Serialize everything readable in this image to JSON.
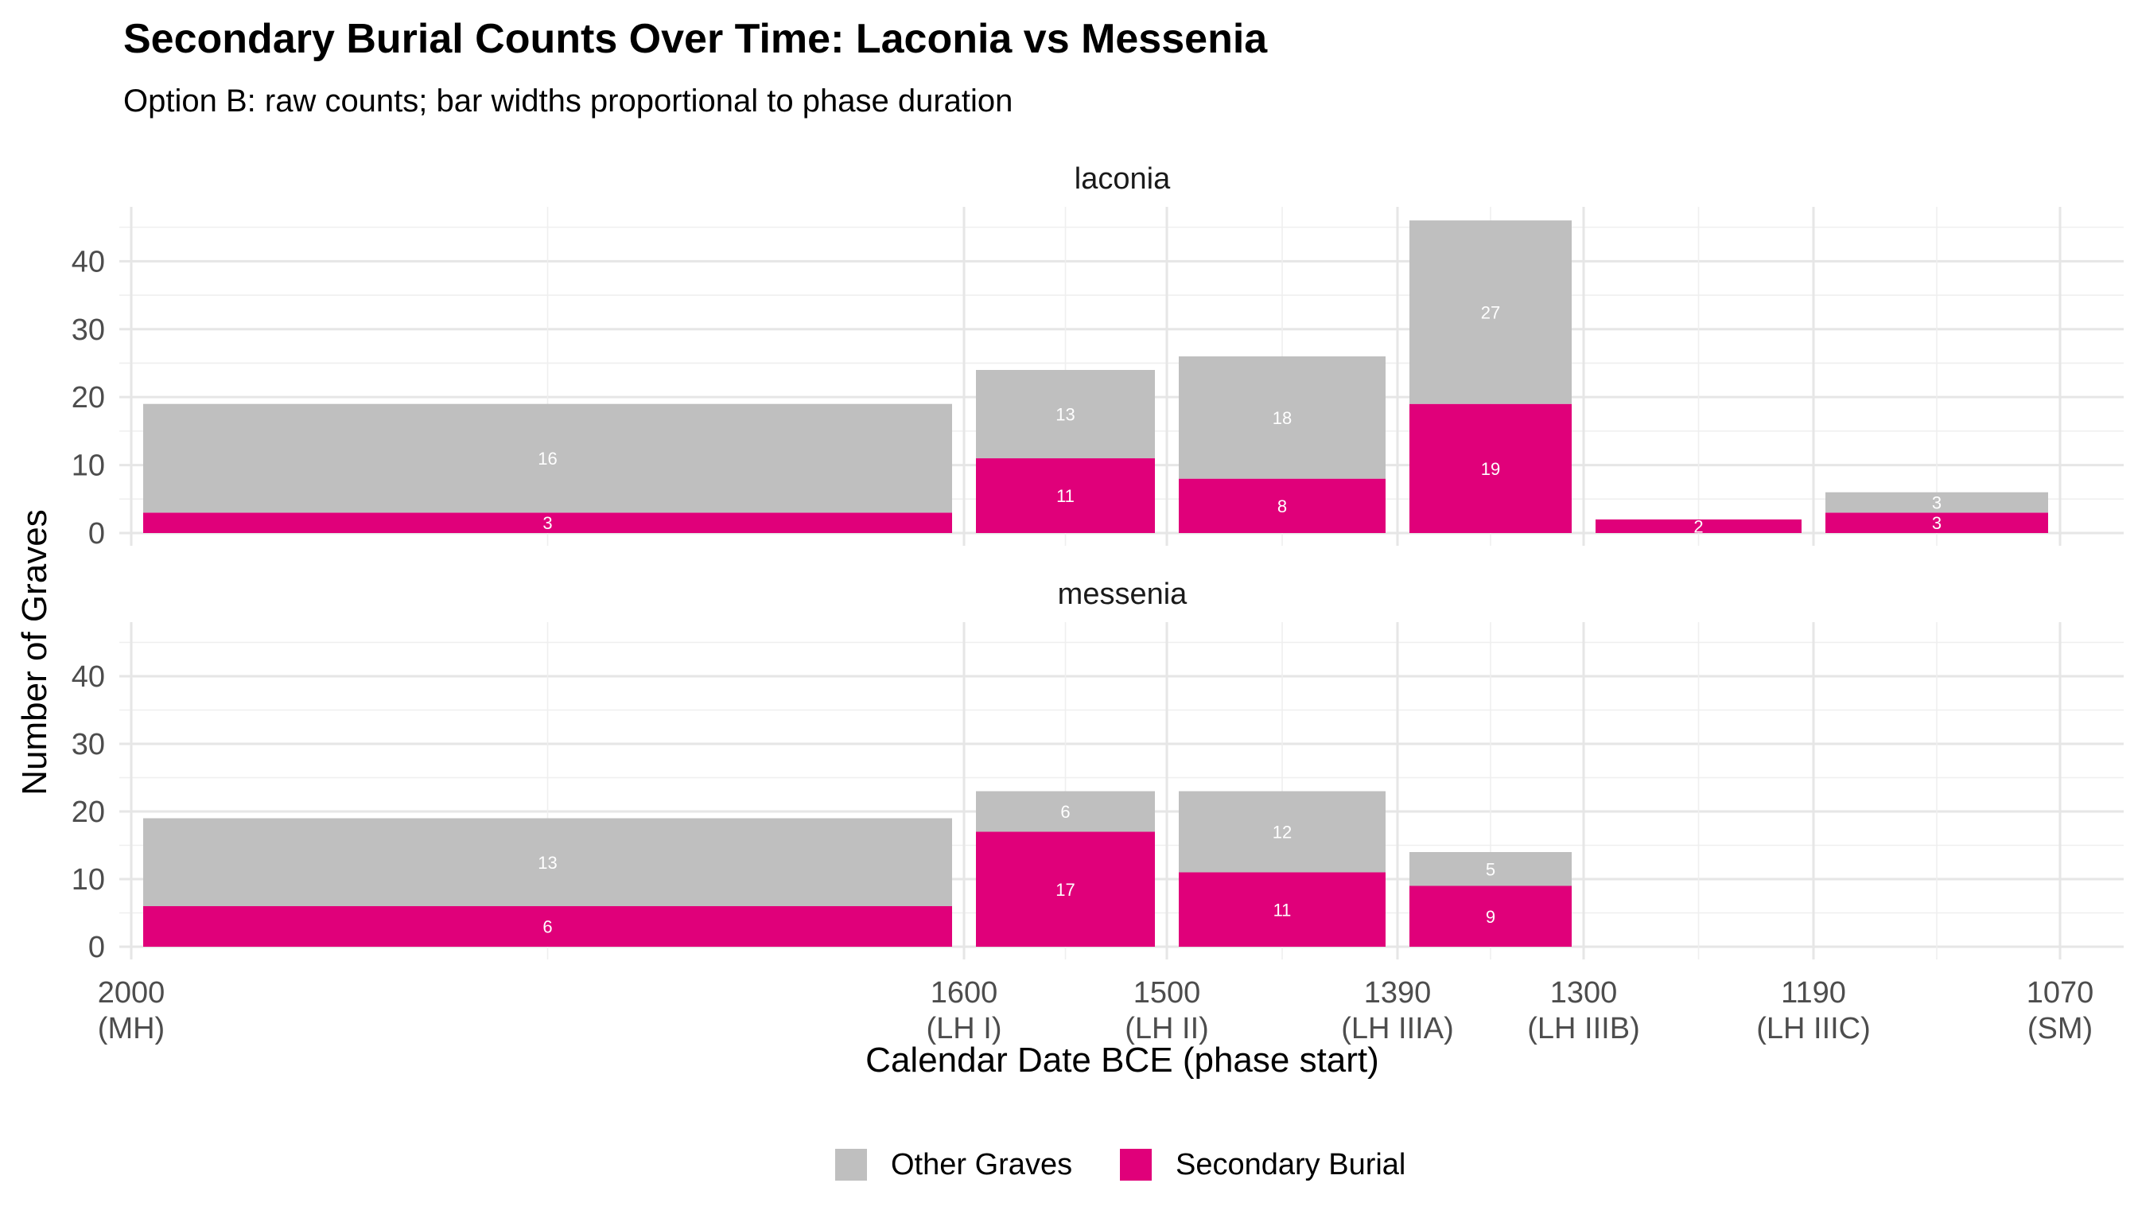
{
  "chart_data": {
    "type": "bar",
    "title": "Secondary Burial Counts Over Time: Laconia vs Messenia",
    "subtitle": "Option B: raw counts; bar widths proportional to phase duration",
    "xlabel": "Calendar Date BCE (phase start)",
    "ylabel": "Number of Graves",
    "ylim": [
      0,
      48
    ],
    "yticks": [
      0,
      10,
      20,
      30,
      40
    ],
    "xlim": [
      2000,
      1070
    ],
    "x_ticks": [
      {
        "value": 2000,
        "year": "2000",
        "phase": "(MH)"
      },
      {
        "value": 1600,
        "year": "1600",
        "phase": "(LH I)"
      },
      {
        "value": 1500,
        "year": "1500",
        "phase": "(LH II)"
      },
      {
        "value": 1390,
        "year": "1390",
        "phase": "(LH IIIA)"
      },
      {
        "value": 1300,
        "year": "1300",
        "phase": "(LH IIIB)"
      },
      {
        "value": 1190,
        "year": "1190",
        "phase": "(LH IIIC)"
      },
      {
        "value": 1070,
        "year": "1070",
        "phase": "(SM)"
      }
    ],
    "phases": [
      {
        "phase": "MH",
        "start": 2000,
        "end": 1600
      },
      {
        "phase": "LH I",
        "start": 1600,
        "end": 1500
      },
      {
        "phase": "LH II",
        "start": 1500,
        "end": 1390
      },
      {
        "phase": "LH IIIA",
        "start": 1390,
        "end": 1300
      },
      {
        "phase": "LH IIIB",
        "start": 1300,
        "end": 1190
      },
      {
        "phase": "LH IIIC",
        "start": 1190,
        "end": 1070
      }
    ],
    "legend": [
      {
        "name": "Other Graves",
        "color": "#bfbfbf"
      },
      {
        "name": "Secondary Burial",
        "color": "#e0007a"
      }
    ],
    "legend_position": "bottom",
    "facets": [
      {
        "name": "laconia",
        "secondary": [
          3,
          11,
          8,
          19,
          2,
          3
        ],
        "other": [
          16,
          13,
          18,
          27,
          0,
          3
        ]
      },
      {
        "name": "messenia",
        "secondary": [
          6,
          17,
          11,
          9,
          null,
          null
        ],
        "other": [
          13,
          6,
          12,
          5,
          null,
          null
        ]
      }
    ]
  }
}
